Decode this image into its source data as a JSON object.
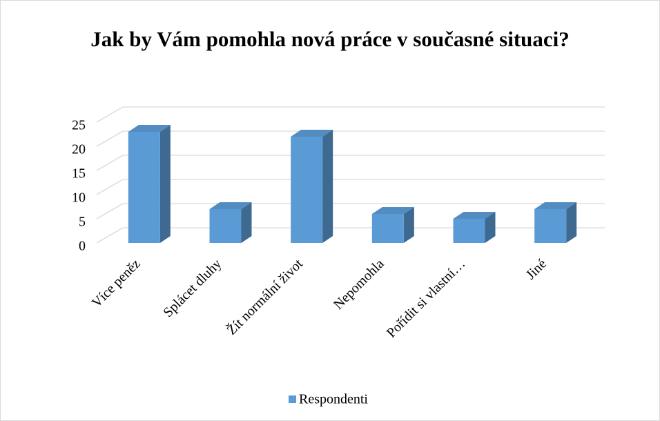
{
  "chart_data": {
    "type": "bar3d",
    "title": "Jak by Vám pomohla nová práce v současné situaci?",
    "categories": [
      "Více peněz",
      "Splácet dluhy",
      "Žít normální život",
      "Nepomohla",
      "Pořídit si vlastní…",
      "Jiné"
    ],
    "series": [
      {
        "name": "Respondenti",
        "color": "#5b9bd5",
        "values": [
          23,
          7,
          22,
          6,
          5,
          7
        ]
      }
    ],
    "ylim": [
      0,
      25
    ],
    "yticks": [
      0,
      5,
      10,
      15,
      20,
      25
    ],
    "grid": true,
    "legend": "bottom"
  }
}
